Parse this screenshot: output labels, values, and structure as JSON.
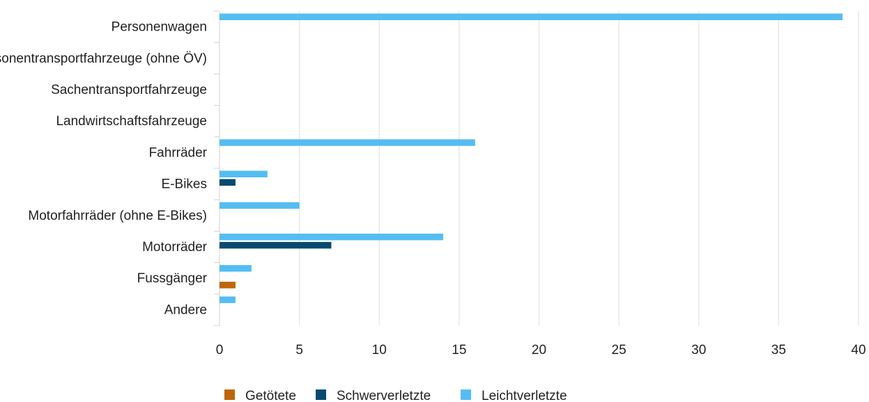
{
  "chart_data": {
    "type": "bar",
    "orientation": "horizontal",
    "categories": [
      "Personenwagen",
      "Personentransportfahrzeuge (ohne ÖV)",
      "Sachentransportfahrzeuge",
      "Landwirtschaftsfahrzeuge",
      "Fahrräder",
      "E-Bikes",
      "Motorfahrräder (ohne E-Bikes)",
      "Motorräder",
      "Fussgänger",
      "Andere"
    ],
    "series": [
      {
        "name": "Getötete",
        "color": "#c0650a",
        "values": [
          0,
          0,
          0,
          0,
          0,
          0,
          0,
          0,
          1,
          0
        ]
      },
      {
        "name": "Schwerverletzte",
        "color": "#0a4a70",
        "values": [
          0,
          0,
          0,
          0,
          0,
          1,
          0,
          7,
          0,
          0
        ]
      },
      {
        "name": "Leichtverletzte",
        "color": "#55bdf2",
        "values": [
          39,
          0,
          0,
          0,
          16,
          3,
          5,
          14,
          2,
          1
        ]
      }
    ],
    "xlim": [
      0,
      40
    ],
    "xticks": [
      0,
      5,
      10,
      15,
      20,
      25,
      30,
      35,
      40
    ],
    "grid": true,
    "legend_position": "bottom"
  }
}
